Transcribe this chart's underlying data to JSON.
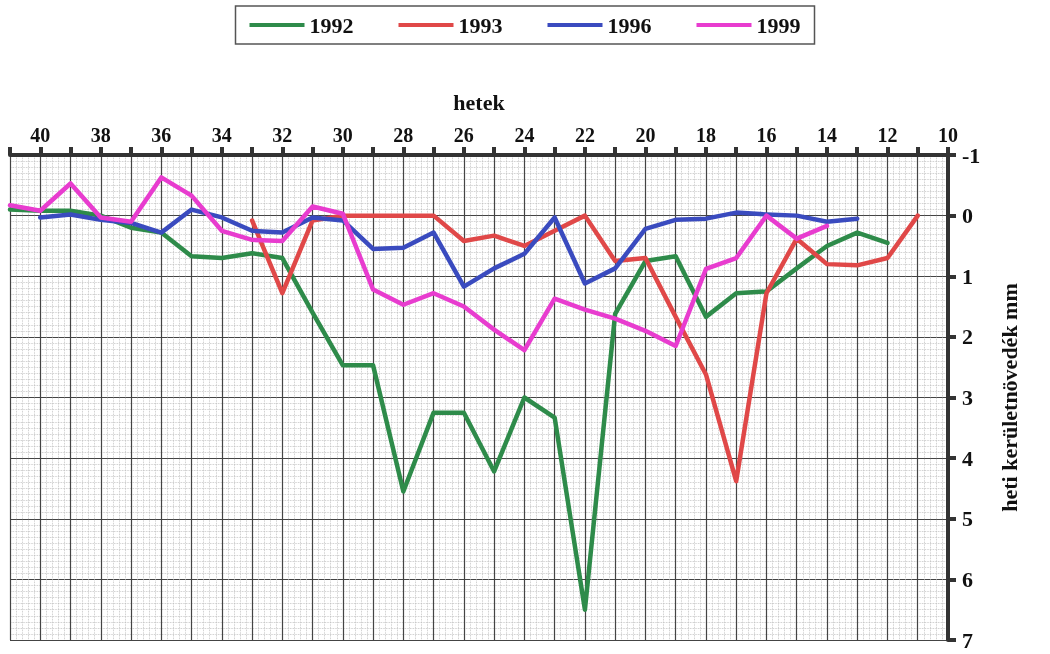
{
  "chart_data": {
    "type": "line",
    "xlabel": "hetek",
    "ylabel": "heti kerületnövedék mm",
    "xlim": [
      41,
      10
    ],
    "xticks": [
      10,
      {
        "value": 11,
        "label": null
      },
      12,
      {
        "value": 13,
        "label": null
      },
      14,
      {
        "value": 15,
        "label": null
      },
      16,
      {
        "value": 17,
        "label": null
      },
      18,
      {
        "value": 19,
        "label": null
      },
      20,
      {
        "value": 21,
        "label": null
      },
      22,
      {
        "value": 23,
        "label": null
      },
      24,
      {
        "value": 25,
        "label": null
      },
      26,
      {
        "value": 27,
        "label": null
      },
      28,
      {
        "value": 29,
        "label": null
      },
      30,
      {
        "value": 31,
        "label": null
      },
      32,
      {
        "value": 33,
        "label": null
      },
      34,
      {
        "value": 35,
        "label": null
      },
      36,
      {
        "value": 37,
        "label": null
      },
      38,
      {
        "value": 39,
        "label": null
      },
      40,
      {
        "value": 41,
        "label": null
      }
    ],
    "ylim": [
      7,
      -1
    ],
    "yticks": [
      -1,
      0,
      1,
      2,
      3,
      4,
      5,
      6,
      7
    ],
    "grid": true,
    "legend": "top",
    "marker": "none",
    "line_style": "solid",
    "series": [
      {
        "name": "1992",
        "color": "#2e8b4a",
        "x": [
          12,
          13,
          14,
          15,
          16,
          17,
          18,
          19,
          20,
          21,
          22,
          23,
          24,
          25,
          26,
          27,
          28,
          29,
          30,
          31,
          32,
          33,
          34,
          35,
          36,
          37,
          38,
          39,
          40,
          41
        ],
        "values": [
          0.45,
          0.28,
          0.5,
          0.87,
          1.25,
          1.28,
          1.67,
          0.67,
          0.75,
          1.62,
          6.5,
          3.33,
          3.0,
          4.22,
          3.25,
          3.25,
          4.55,
          2.47,
          2.47,
          1.6,
          0.7,
          0.62,
          0.7,
          0.67,
          0.28,
          0.2,
          0,
          -0.08,
          -0.08,
          -0.1
        ]
      },
      {
        "name": "1993",
        "color": "#e04848",
        "x": [
          11,
          12,
          13,
          14,
          15,
          16,
          17,
          18,
          19,
          20,
          21,
          22,
          23,
          24,
          25,
          26,
          27,
          28,
          29,
          30,
          31,
          32,
          33
        ],
        "values": [
          0,
          0.7,
          0.82,
          0.8,
          0.38,
          1.28,
          4.38,
          2.62,
          1.67,
          0.7,
          0.75,
          0,
          0.25,
          0.5,
          0.33,
          0.42,
          0,
          0,
          0,
          0,
          0.08,
          1.28,
          0.08
        ]
      },
      {
        "name": "1996",
        "color": "#3a4bbf",
        "x": [
          13,
          14,
          15,
          16,
          17,
          18,
          19,
          20,
          21,
          22,
          23,
          24,
          25,
          26,
          27,
          28,
          29,
          30,
          31,
          32,
          33,
          34,
          35,
          36,
          37,
          38,
          39,
          40
        ],
        "values": [
          0.05,
          0.1,
          0,
          -0.02,
          -0.05,
          0.05,
          0.07,
          0.22,
          0.87,
          1.12,
          0.03,
          0.63,
          0.87,
          1.17,
          0.28,
          0.53,
          0.55,
          0.08,
          0.03,
          0.28,
          0.25,
          0.03,
          -0.1,
          0.28,
          0.12,
          0.07,
          -0.02,
          0.03
        ]
      },
      {
        "name": "1999",
        "color": "#e83ccf",
        "x": [
          14,
          15,
          16,
          17,
          18,
          19,
          20,
          21,
          22,
          23,
          24,
          25,
          26,
          27,
          28,
          29,
          30,
          31,
          32,
          33,
          34,
          35,
          36,
          37,
          38,
          39,
          40,
          41
        ],
        "values": [
          0.17,
          0.38,
          0,
          0.7,
          0.88,
          2.15,
          1.9,
          1.7,
          1.55,
          1.37,
          2.22,
          1.88,
          1.5,
          1.28,
          1.47,
          1.22,
          -0.03,
          -0.15,
          0.42,
          0.4,
          0.25,
          -0.33,
          -0.63,
          0.1,
          0.03,
          -0.53,
          -0.08,
          -0.17
        ]
      }
    ]
  }
}
